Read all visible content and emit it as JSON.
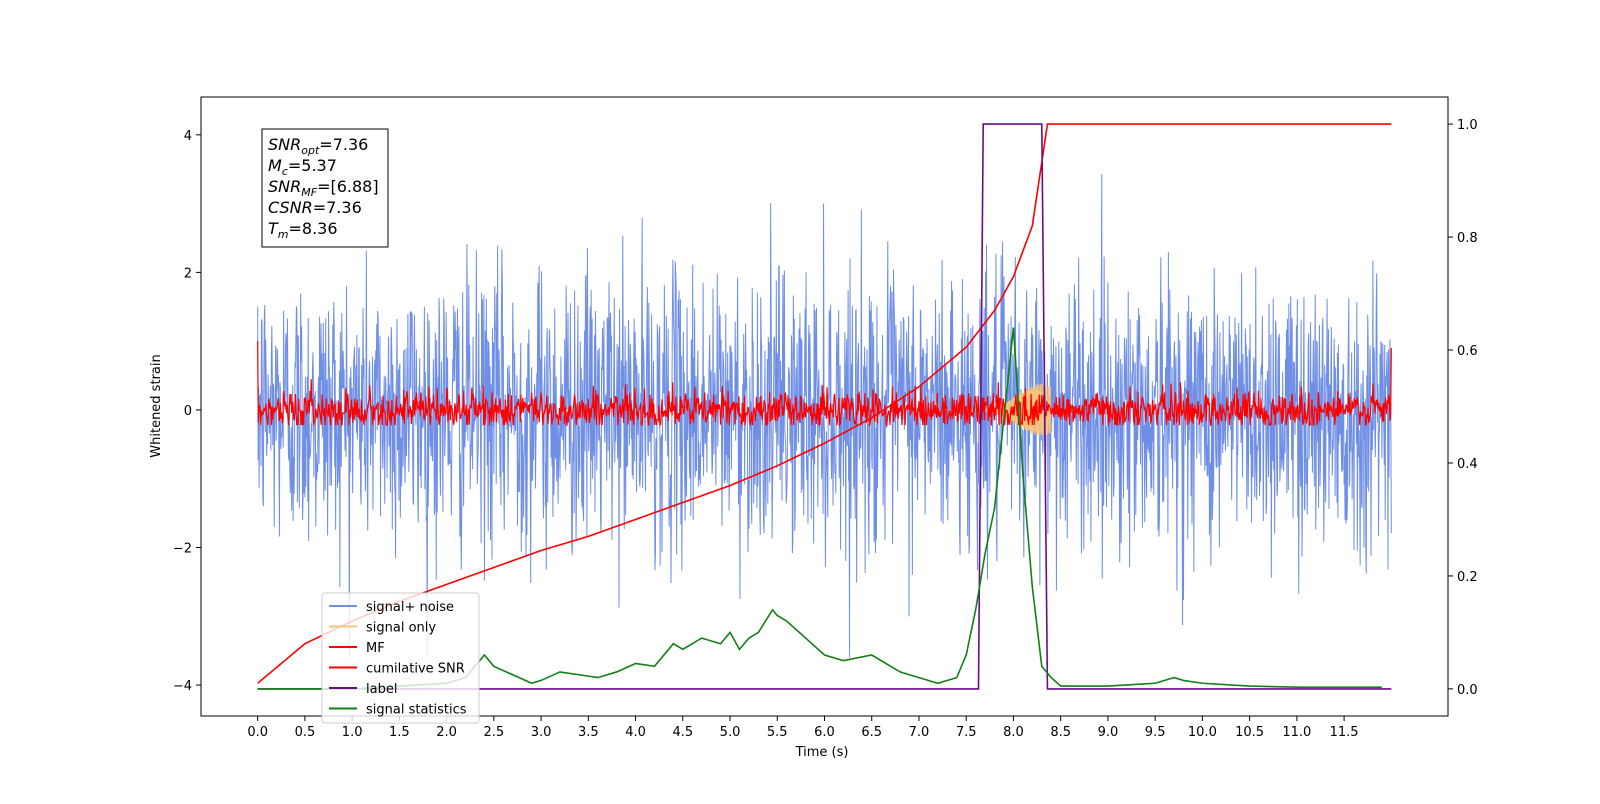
{
  "chart_data": {
    "type": "line",
    "xlabel": "Time (s)",
    "ylabel_left": "Whitened strain",
    "ylabel_right": "",
    "xlim": [
      -0.6,
      12.6
    ],
    "ylim_left": [
      -4.45,
      4.55
    ],
    "ylim_right": [
      -0.048,
      1.048
    ],
    "x_ticks": [
      "0.0",
      "0.5",
      "1.0",
      "1.5",
      "2.0",
      "2.5",
      "3.0",
      "3.5",
      "4.0",
      "4.5",
      "5.0",
      "5.5",
      "6.0",
      "6.5",
      "7.0",
      "7.5",
      "8.0",
      "8.5",
      "9.0",
      "9.5",
      "10.0",
      "10.5",
      "11.0",
      "11.5"
    ],
    "x_tick_values": [
      0,
      0.5,
      1,
      1.5,
      2,
      2.5,
      3,
      3.5,
      4,
      4.5,
      5,
      5.5,
      6,
      6.5,
      7,
      7.5,
      8,
      8.5,
      9,
      9.5,
      10,
      10.5,
      11,
      11.5
    ],
    "y_ticks_left": [
      "4",
      "2",
      "0",
      "−2",
      "−4"
    ],
    "y_tick_values_left": [
      4,
      2,
      0,
      -2,
      -4
    ],
    "y_ticks_right": [
      "1.0",
      "0.8",
      "0.6",
      "0.4",
      "0.2",
      "0.0"
    ],
    "y_tick_values_right": [
      1.0,
      0.8,
      0.6,
      0.4,
      0.2,
      0.0
    ],
    "grid": false,
    "legend_position": "lower-left",
    "info_box": [
      {
        "main": "SNR",
        "sub": "opt",
        "rest": "=7.36"
      },
      {
        "main": "M",
        "sub": "c",
        "rest": "=5.37"
      },
      {
        "main": "SNR",
        "sub": "MF",
        "rest": "=[6.88]"
      },
      {
        "main": "CSNR",
        "sub": "",
        "rest": "=7.36"
      },
      {
        "main": "T",
        "sub": "m",
        "rest": "=8.36"
      }
    ],
    "series": [
      {
        "name": "signal+ noise",
        "color": "#6f8fe6",
        "axis": "left",
        "kind": "noise",
        "amplitude_std": 1.0,
        "x_range": [
          0,
          12
        ]
      },
      {
        "name": "signal only",
        "color": "#f5c37a",
        "axis": "left",
        "kind": "chirp",
        "peak_time": 8.3,
        "peak_amplitude": 0.38
      },
      {
        "name": "MF",
        "color": "#ff0000",
        "axis": "left",
        "kind": "mf_noise",
        "amplitude_std": 0.14,
        "x_range": [
          0,
          12
        ]
      },
      {
        "name": "cumilative SNR",
        "color": "#ff0000",
        "axis": "right",
        "x": [
          0,
          0.5,
          1.0,
          1.5,
          2.0,
          2.5,
          3.0,
          3.5,
          4.0,
          4.5,
          5.0,
          5.5,
          6.0,
          6.5,
          7.0,
          7.5,
          7.8,
          8.0,
          8.2,
          8.36,
          12.0
        ],
        "values": [
          0.01,
          0.08,
          0.12,
          0.155,
          0.185,
          0.215,
          0.245,
          0.27,
          0.3,
          0.33,
          0.36,
          0.395,
          0.435,
          0.48,
          0.535,
          0.605,
          0.67,
          0.73,
          0.82,
          1.0,
          1.0
        ]
      },
      {
        "name": "label",
        "color": "#6a0b8a",
        "axis": "right",
        "x": [
          0,
          7.63,
          7.68,
          8.3,
          8.36,
          12.0
        ],
        "values": [
          0.0,
          0.0,
          1.0,
          1.0,
          0.0,
          0.0
        ]
      },
      {
        "name": "signal statistics",
        "color": "#128012",
        "axis": "right",
        "x": [
          0,
          0.5,
          1.0,
          1.5,
          2.0,
          2.2,
          2.4,
          2.5,
          2.7,
          2.9,
          3.0,
          3.2,
          3.4,
          3.6,
          3.8,
          4.0,
          4.2,
          4.4,
          4.5,
          4.7,
          4.9,
          5.0,
          5.1,
          5.2,
          5.3,
          5.45,
          5.5,
          5.6,
          5.8,
          6.0,
          6.2,
          6.5,
          6.8,
          7.0,
          7.2,
          7.4,
          7.5,
          7.6,
          7.7,
          7.8,
          7.9,
          8.0,
          8.1,
          8.2,
          8.3,
          8.4,
          8.5,
          9.0,
          9.5,
          9.7,
          9.8,
          10.0,
          10.5,
          11.0,
          11.5,
          11.9
        ],
        "values": [
          0.0,
          0.0,
          0.0,
          0.005,
          0.01,
          0.02,
          0.06,
          0.04,
          0.025,
          0.01,
          0.015,
          0.03,
          0.025,
          0.02,
          0.03,
          0.045,
          0.04,
          0.08,
          0.07,
          0.09,
          0.08,
          0.1,
          0.07,
          0.09,
          0.1,
          0.14,
          0.13,
          0.12,
          0.09,
          0.06,
          0.05,
          0.06,
          0.03,
          0.02,
          0.01,
          0.02,
          0.06,
          0.14,
          0.24,
          0.32,
          0.48,
          0.64,
          0.38,
          0.18,
          0.04,
          0.02,
          0.005,
          0.005,
          0.01,
          0.02,
          0.015,
          0.01,
          0.005,
          0.003,
          0.003,
          0.003
        ]
      }
    ]
  }
}
